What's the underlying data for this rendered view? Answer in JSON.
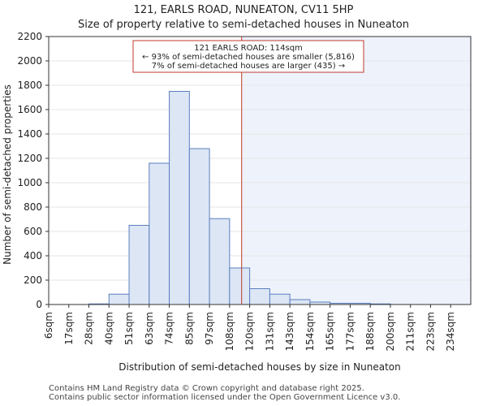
{
  "chart_data": {
    "type": "bar",
    "title_line1": "121, EARLS ROAD, NUNEATON, CV11 5HP",
    "title_line2": "Size of property relative to semi-detached houses in Nuneaton",
    "xlabel": "Distribution of semi-detached houses by size in Nuneaton",
    "ylabel": "Number of semi-detached properties",
    "ylim": [
      0,
      2200
    ],
    "yticks": [
      0,
      200,
      400,
      600,
      800,
      1000,
      1200,
      1400,
      1600,
      1800,
      2000,
      2200
    ],
    "categories": [
      "6sqm",
      "17sqm",
      "28sqm",
      "40sqm",
      "51sqm",
      "63sqm",
      "74sqm",
      "85sqm",
      "97sqm",
      "108sqm",
      "120sqm",
      "131sqm",
      "143sqm",
      "154sqm",
      "165sqm",
      "177sqm",
      "188sqm",
      "200sqm",
      "211sqm",
      "223sqm",
      "234sqm"
    ],
    "values": [
      0,
      0,
      5,
      85,
      650,
      1160,
      1750,
      1280,
      705,
      300,
      130,
      85,
      40,
      20,
      10,
      10,
      5,
      0,
      0,
      0,
      0
    ],
    "marker_bin_position": 9.6,
    "annotation": {
      "line1": "121 EARLS ROAD: 114sqm",
      "line2": "← 93% of semi-detached houses are smaller (5,816)",
      "line3": "7% of semi-detached houses are larger (435) →"
    },
    "colors": {
      "bar_fill": "#dce6f5",
      "bar_stroke": "#5b7fbf",
      "marker": "#c0392b",
      "highlight": "#eef2fb",
      "grid": "#e6e6e6"
    }
  },
  "footer": {
    "line1": "Contains HM Land Registry data © Crown copyright and database right 2025.",
    "line2": "Contains public sector information licensed under the Open Government Licence v3.0."
  }
}
